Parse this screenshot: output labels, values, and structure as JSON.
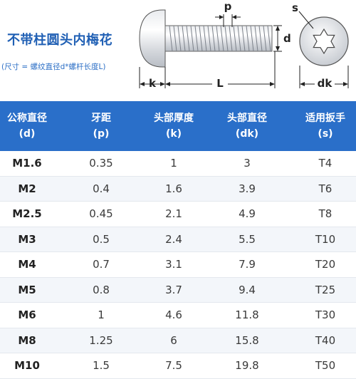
{
  "product": {
    "title": "不带柱圆头内梅花",
    "subtitle": "(尺寸 = 螺纹直径d*螺杆长度L)"
  },
  "diagram_labels": {
    "p": "p",
    "d": "d",
    "k": "k",
    "L": "L",
    "s": "s",
    "dk": "dk"
  },
  "table": {
    "columns": [
      {
        "name": "公称直径",
        "symbol": "(d)"
      },
      {
        "name": "牙距",
        "symbol": "(p)"
      },
      {
        "name": "头部厚度",
        "symbol": "(k)"
      },
      {
        "name": "头部直径",
        "symbol": "(dk)"
      },
      {
        "name": "适用扳手",
        "symbol": "(s)"
      }
    ],
    "rows": [
      [
        "M1.6",
        "0.35",
        "1",
        "3",
        "T4"
      ],
      [
        "M2",
        "0.4",
        "1.6",
        "3.9",
        "T6"
      ],
      [
        "M2.5",
        "0.45",
        "2.1",
        "4.9",
        "T8"
      ],
      [
        "M3",
        "0.5",
        "2.4",
        "5.5",
        "T10"
      ],
      [
        "M4",
        "0.7",
        "3.1",
        "7.9",
        "T20"
      ],
      [
        "M5",
        "0.8",
        "3.7",
        "9.4",
        "T25"
      ],
      [
        "M6",
        "1",
        "4.6",
        "11.8",
        "T30"
      ],
      [
        "M8",
        "1.25",
        "6",
        "15.8",
        "T40"
      ],
      [
        "M10",
        "1.5",
        "7.5",
        "19.8",
        "T50"
      ]
    ]
  },
  "colors": {
    "header_bg": "#2a6fc9",
    "title": "#1f5fb4",
    "dimension_lines": "#222222"
  }
}
